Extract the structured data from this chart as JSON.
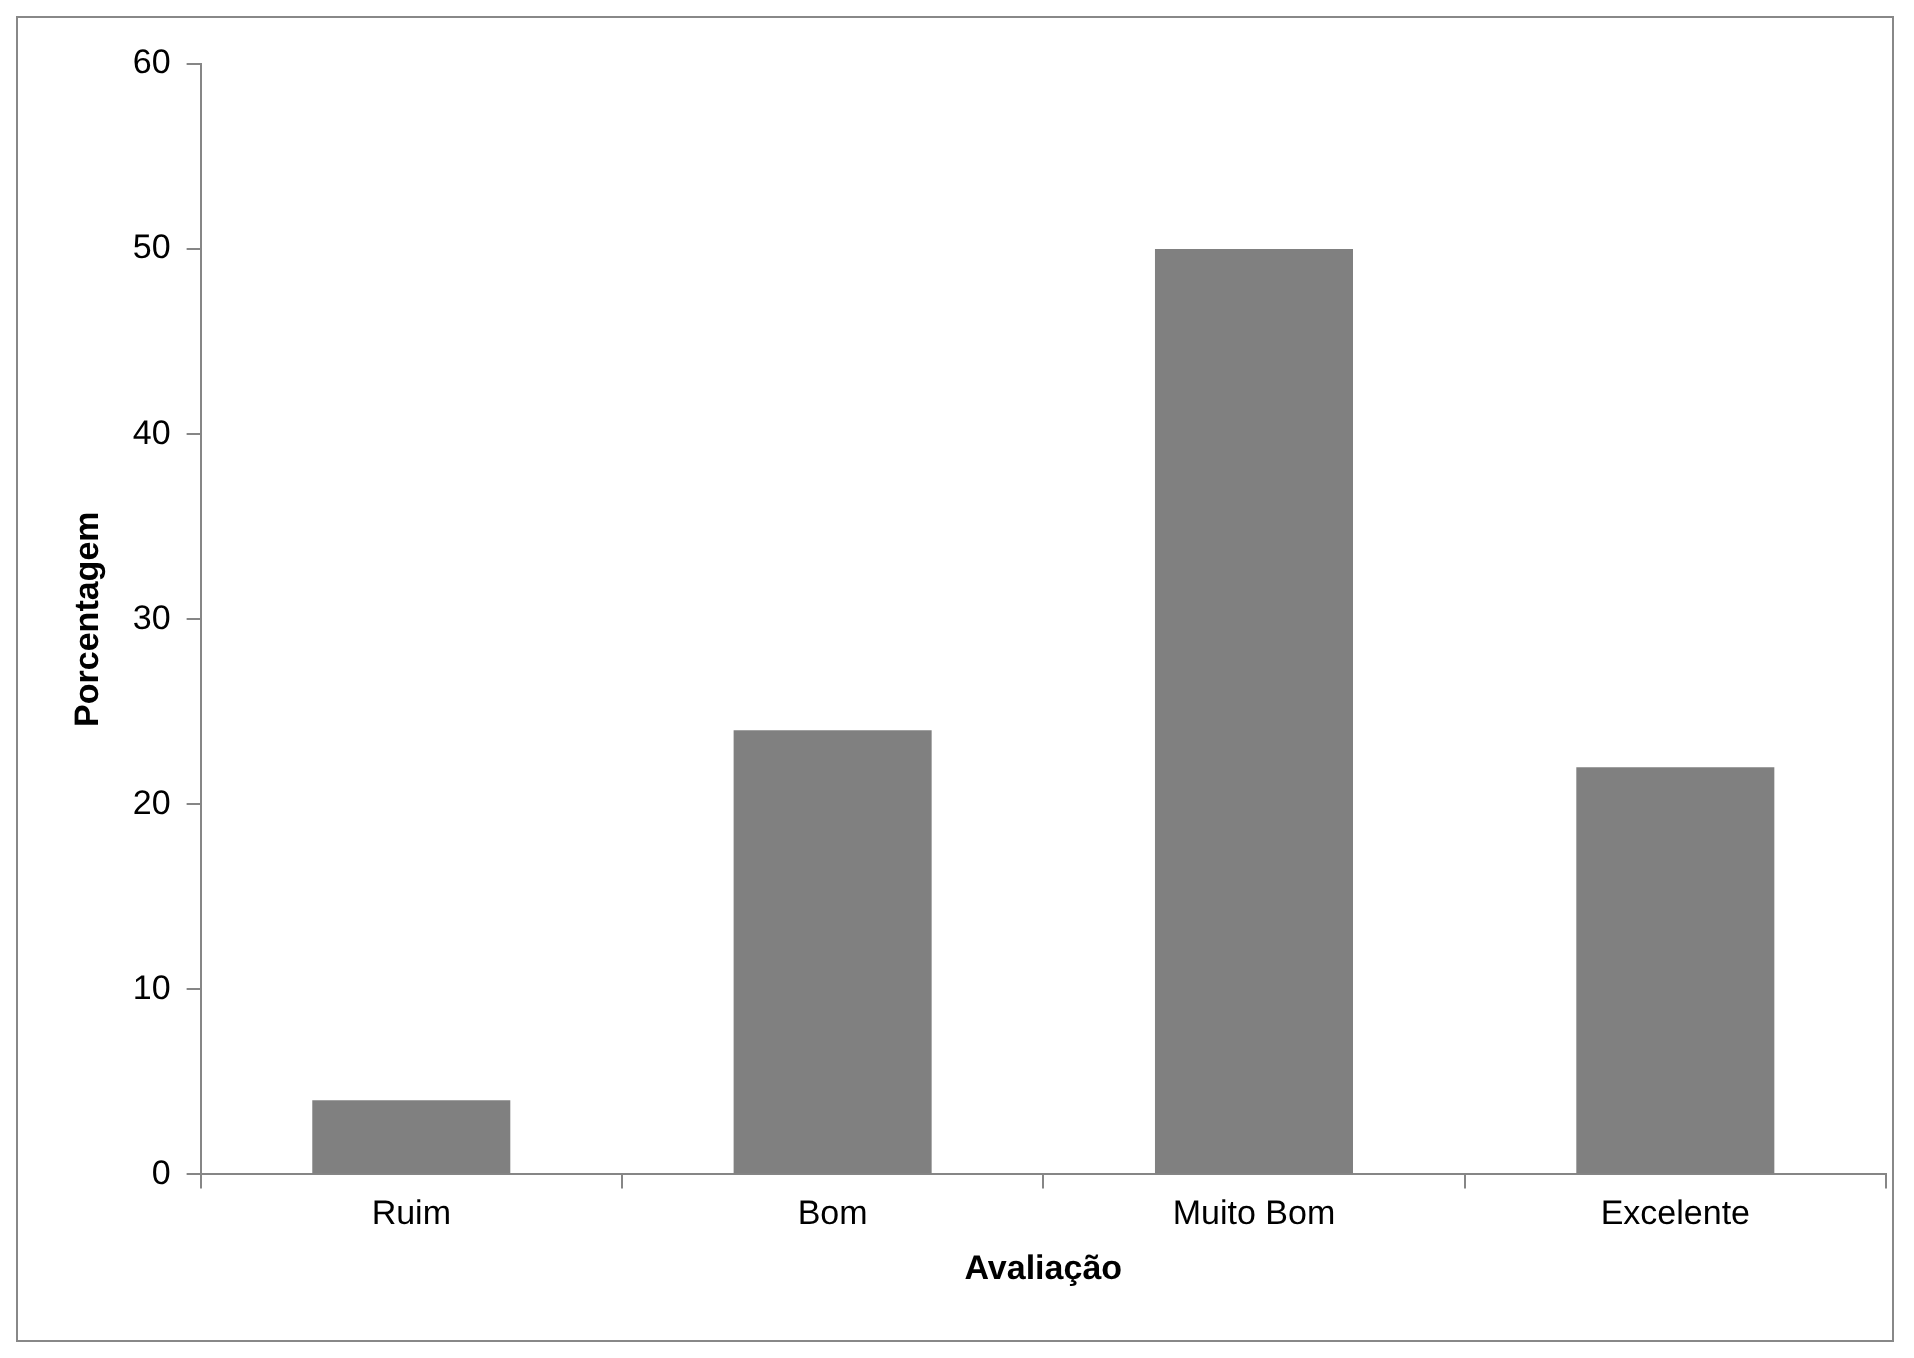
{
  "chart_data": {
    "type": "bar",
    "xlabel": "Avaliação",
    "ylabel": "Porcentagem",
    "categories": [
      "Ruim",
      "Bom",
      "Muito Bom",
      "Excelente"
    ],
    "values": [
      4,
      24,
      50,
      22
    ],
    "color": "#808080",
    "ylim": [
      0,
      60
    ],
    "yticks": [
      0,
      10,
      20,
      30,
      40,
      50,
      60
    ],
    "grid": false,
    "legend": false
  }
}
